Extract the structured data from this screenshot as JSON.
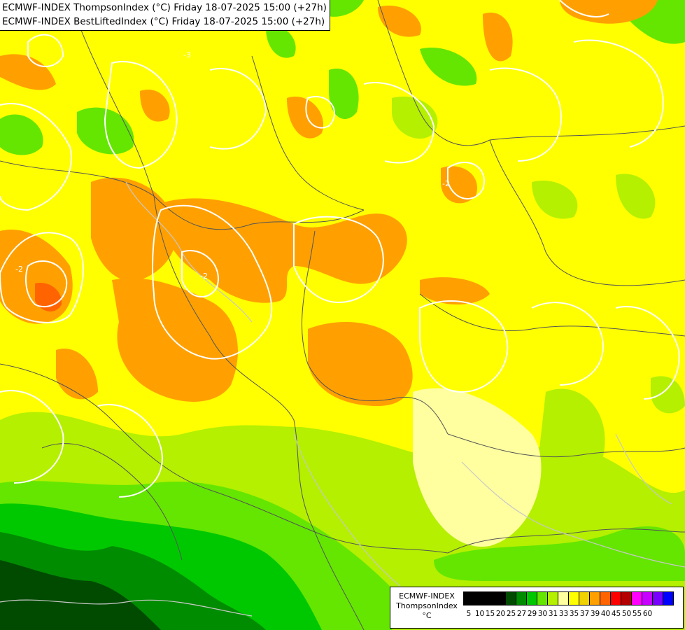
{
  "title": {
    "line1": "ECMWF-INDEX ThompsonIndex (°C) Friday 18-07-2025 15:00 (+27h)",
    "line2": "ECMWF-INDEX BestLiftedIndex (°C) Friday 18-07-2025 15:00 (+27h)"
  },
  "map": {
    "contour_labels": [
      "-3",
      "-2",
      "-2",
      "-2"
    ]
  },
  "legend": {
    "model": "ECMWF-INDEX",
    "parameter": "ThompsonIndex",
    "unit": "°C",
    "colors": [
      "#000000",
      "#000000",
      "#000000",
      "#000000",
      "#004b00",
      "#008c00",
      "#00c800",
      "#64e600",
      "#b4f000",
      "#ffffa0",
      "#ffff00",
      "#f0d200",
      "#ffa000",
      "#ff6400",
      "#ff0000",
      "#b40000",
      "#ff00ff",
      "#c800ff",
      "#7800ff",
      "#0000ff"
    ],
    "ticks": [
      "5",
      "10",
      "15",
      "20",
      "25",
      "27",
      "29",
      "30",
      "31",
      "33",
      "35",
      "37",
      "39",
      "40",
      "45",
      "50",
      "55",
      "60"
    ]
  }
}
